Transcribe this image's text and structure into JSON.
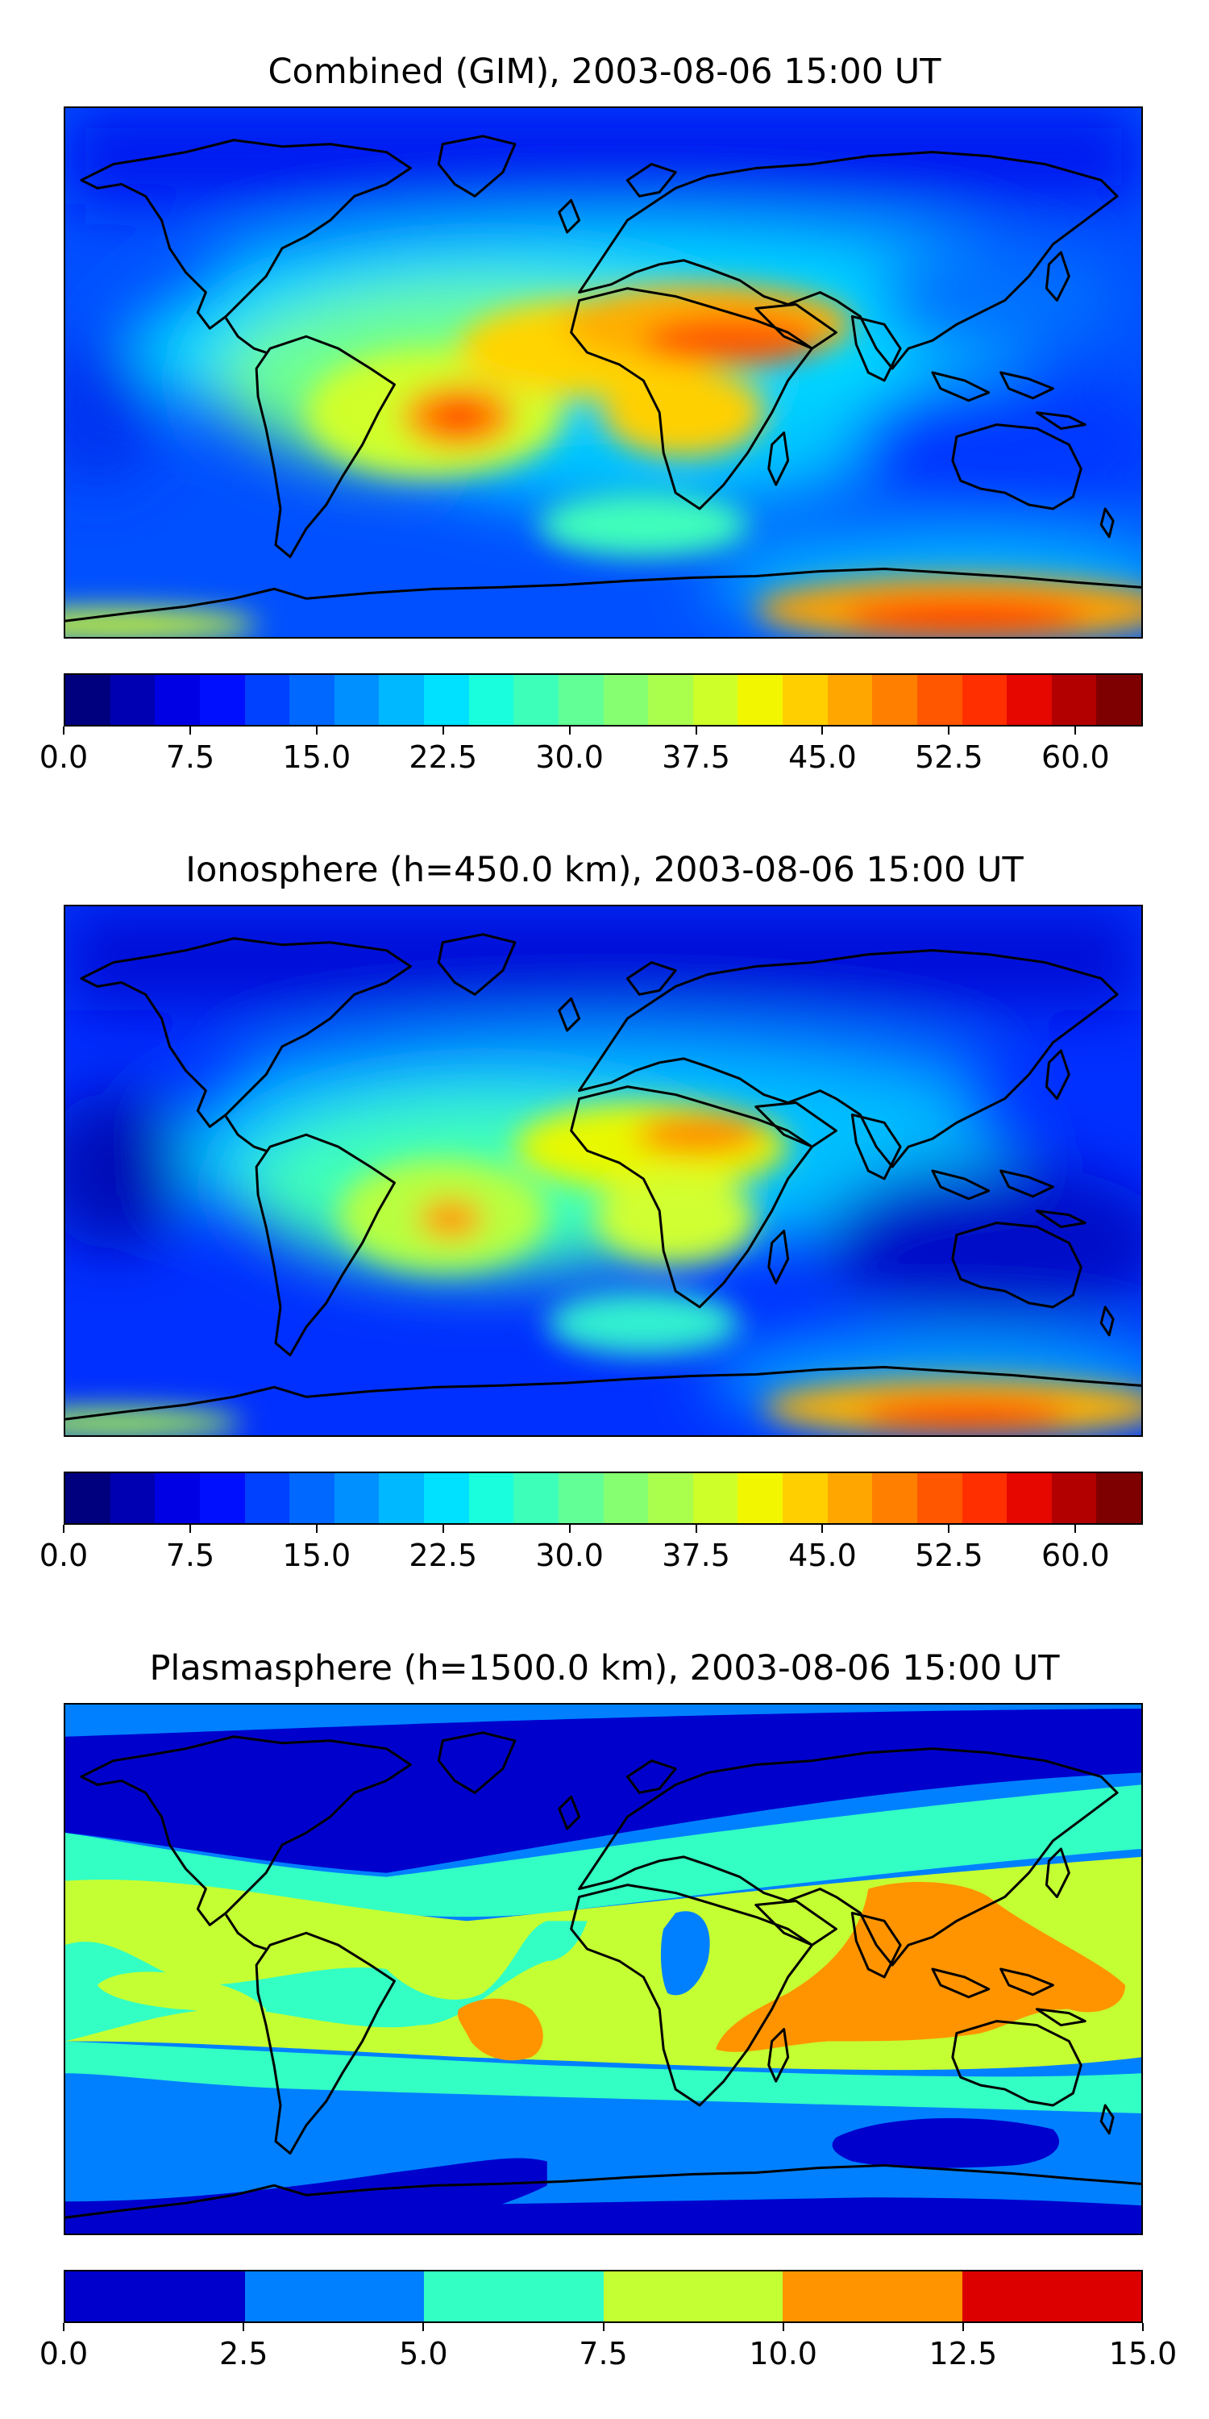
{
  "panels": [
    {
      "title": "Combined (GIM), 2003-08-06 15:00 UT",
      "colorbar_ticks": [
        "0.0",
        "7.5",
        "15.0",
        "22.5",
        "30.0",
        "37.5",
        "45.0",
        "52.5",
        "60.0"
      ],
      "colorbar_colors": [
        "#00007f",
        "#0000b2",
        "#0000e5",
        "#0010ff",
        "#0040ff",
        "#0068ff",
        "#0090ff",
        "#00b8ff",
        "#00e0ff",
        "#19ffde",
        "#3dffba",
        "#61ff96",
        "#86ff71",
        "#aaff4d",
        "#ceff29",
        "#f2f700",
        "#ffcf00",
        "#ffa700",
        "#ff7f00",
        "#ff5700",
        "#ff2f00",
        "#e50700",
        "#b20000",
        "#7f0000"
      ]
    },
    {
      "title": "Ionosphere  (h=450.0 km), 2003-08-06 15:00 UT",
      "colorbar_ticks": [
        "0.0",
        "7.5",
        "15.0",
        "22.5",
        "30.0",
        "37.5",
        "45.0",
        "52.5",
        "60.0"
      ],
      "colorbar_colors": [
        "#00007f",
        "#0000b2",
        "#0000e5",
        "#0010ff",
        "#0040ff",
        "#0068ff",
        "#0090ff",
        "#00b8ff",
        "#00e0ff",
        "#19ffde",
        "#3dffba",
        "#61ff96",
        "#86ff71",
        "#aaff4d",
        "#ceff29",
        "#f2f700",
        "#ffcf00",
        "#ffa700",
        "#ff7f00",
        "#ff5700",
        "#ff2f00",
        "#e50700",
        "#b20000",
        "#7f0000"
      ]
    },
    {
      "title": "Plasmasphere (h=1500.0 km), 2003-08-06 15:00 UT",
      "colorbar_ticks": [
        "0.0",
        "2.5",
        "5.0",
        "7.5",
        "10.0",
        "12.5",
        "15.0"
      ],
      "colorbar_colors": [
        "#0000cd",
        "#0080ff",
        "#33ffc4",
        "#c4ff33",
        "#ff9400",
        "#dd0000"
      ]
    }
  ],
  "chart_data": [
    {
      "type": "heatmap",
      "title": "Combined (GIM), 2003-08-06 15:00 UT",
      "colorbar_range": [
        0,
        64
      ],
      "colorbar_levels": 24,
      "colorbar_tick_values": [
        0.0,
        7.5,
        15.0,
        22.5,
        30.0,
        37.5,
        45.0,
        52.5,
        60.0
      ],
      "features": [
        {
          "lon": -60,
          "lat": -10,
          "value": 50
        },
        {
          "lon": 20,
          "lat": 20,
          "value": 47
        },
        {
          "lon": 45,
          "lat": 18,
          "value": 52
        },
        {
          "lon": 20,
          "lat": -12,
          "value": 40
        },
        {
          "lon": 120,
          "lat": -75,
          "value": 55
        },
        {
          "lon": -170,
          "lat": -80,
          "value": 38
        },
        {
          "lon": 140,
          "lat": 20,
          "value": 10
        }
      ]
    },
    {
      "type": "heatmap",
      "title": "Ionosphere  (h=450.0 km), 2003-08-06 15:00 UT",
      "colorbar_range": [
        0,
        64
      ],
      "colorbar_levels": 24,
      "colorbar_tick_values": [
        0.0,
        7.5,
        15.0,
        22.5,
        30.0,
        37.5,
        45.0,
        52.5,
        60.0
      ],
      "features": [
        {
          "lon": -60,
          "lat": -10,
          "value": 42
        },
        {
          "lon": 30,
          "lat": 22,
          "value": 45
        },
        {
          "lon": 20,
          "lat": -10,
          "value": 35
        },
        {
          "lon": 120,
          "lat": -75,
          "value": 52
        },
        {
          "lon": 140,
          "lat": 20,
          "value": 5
        }
      ]
    },
    {
      "type": "heatmap",
      "title": "Plasmasphere (h=1500.0 km), 2003-08-06 15:00 UT",
      "colorbar_range": [
        0,
        15
      ],
      "colorbar_levels": 6,
      "colorbar_tick_values": [
        0.0,
        2.5,
        5.0,
        7.5,
        10.0,
        12.5,
        15.0
      ],
      "features": [
        {
          "lon": 120,
          "lat": 0,
          "value": 11
        },
        {
          "lon": -45,
          "lat": -10,
          "value": 11
        },
        {
          "lon": 0,
          "lat": 10,
          "value": 8
        },
        {
          "lon": 110,
          "lat": -40,
          "value": 2
        },
        {
          "lon": 0,
          "lat": 65,
          "value": 2
        }
      ]
    }
  ]
}
